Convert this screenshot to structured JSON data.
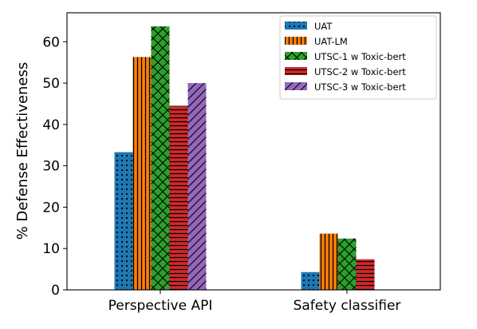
{
  "chart_data": {
    "type": "bar",
    "title": "",
    "xlabel": "",
    "ylabel": "% Defense Effectiveness",
    "ylim": [
      0,
      67
    ],
    "yticks": [
      0,
      10,
      20,
      30,
      40,
      50,
      60
    ],
    "categories": [
      "Perspective API",
      "Safety classifier"
    ],
    "grid": false,
    "legend_position": "top-right",
    "series": [
      {
        "name": "UAT",
        "values": [
          33.3,
          4.3
        ],
        "color": "#1f77b4",
        "hatch": "dots"
      },
      {
        "name": "UAT-LM",
        "values": [
          56.3,
          13.6
        ],
        "color": "#ff7f0e",
        "hatch": "vertical"
      },
      {
        "name": "UTSC-1 w Toxic-bert",
        "values": [
          63.7,
          12.4
        ],
        "color": "#2ca02c",
        "hatch": "cross"
      },
      {
        "name": "UTSC-2 w Toxic-bert",
        "values": [
          44.5,
          7.4
        ],
        "color": "#d62728",
        "hatch": "horizontal"
      },
      {
        "name": "UTSC-3 w Toxic-bert",
        "values": [
          50.0,
          0
        ],
        "color": "#9467bd",
        "hatch": "diagonal"
      }
    ]
  }
}
